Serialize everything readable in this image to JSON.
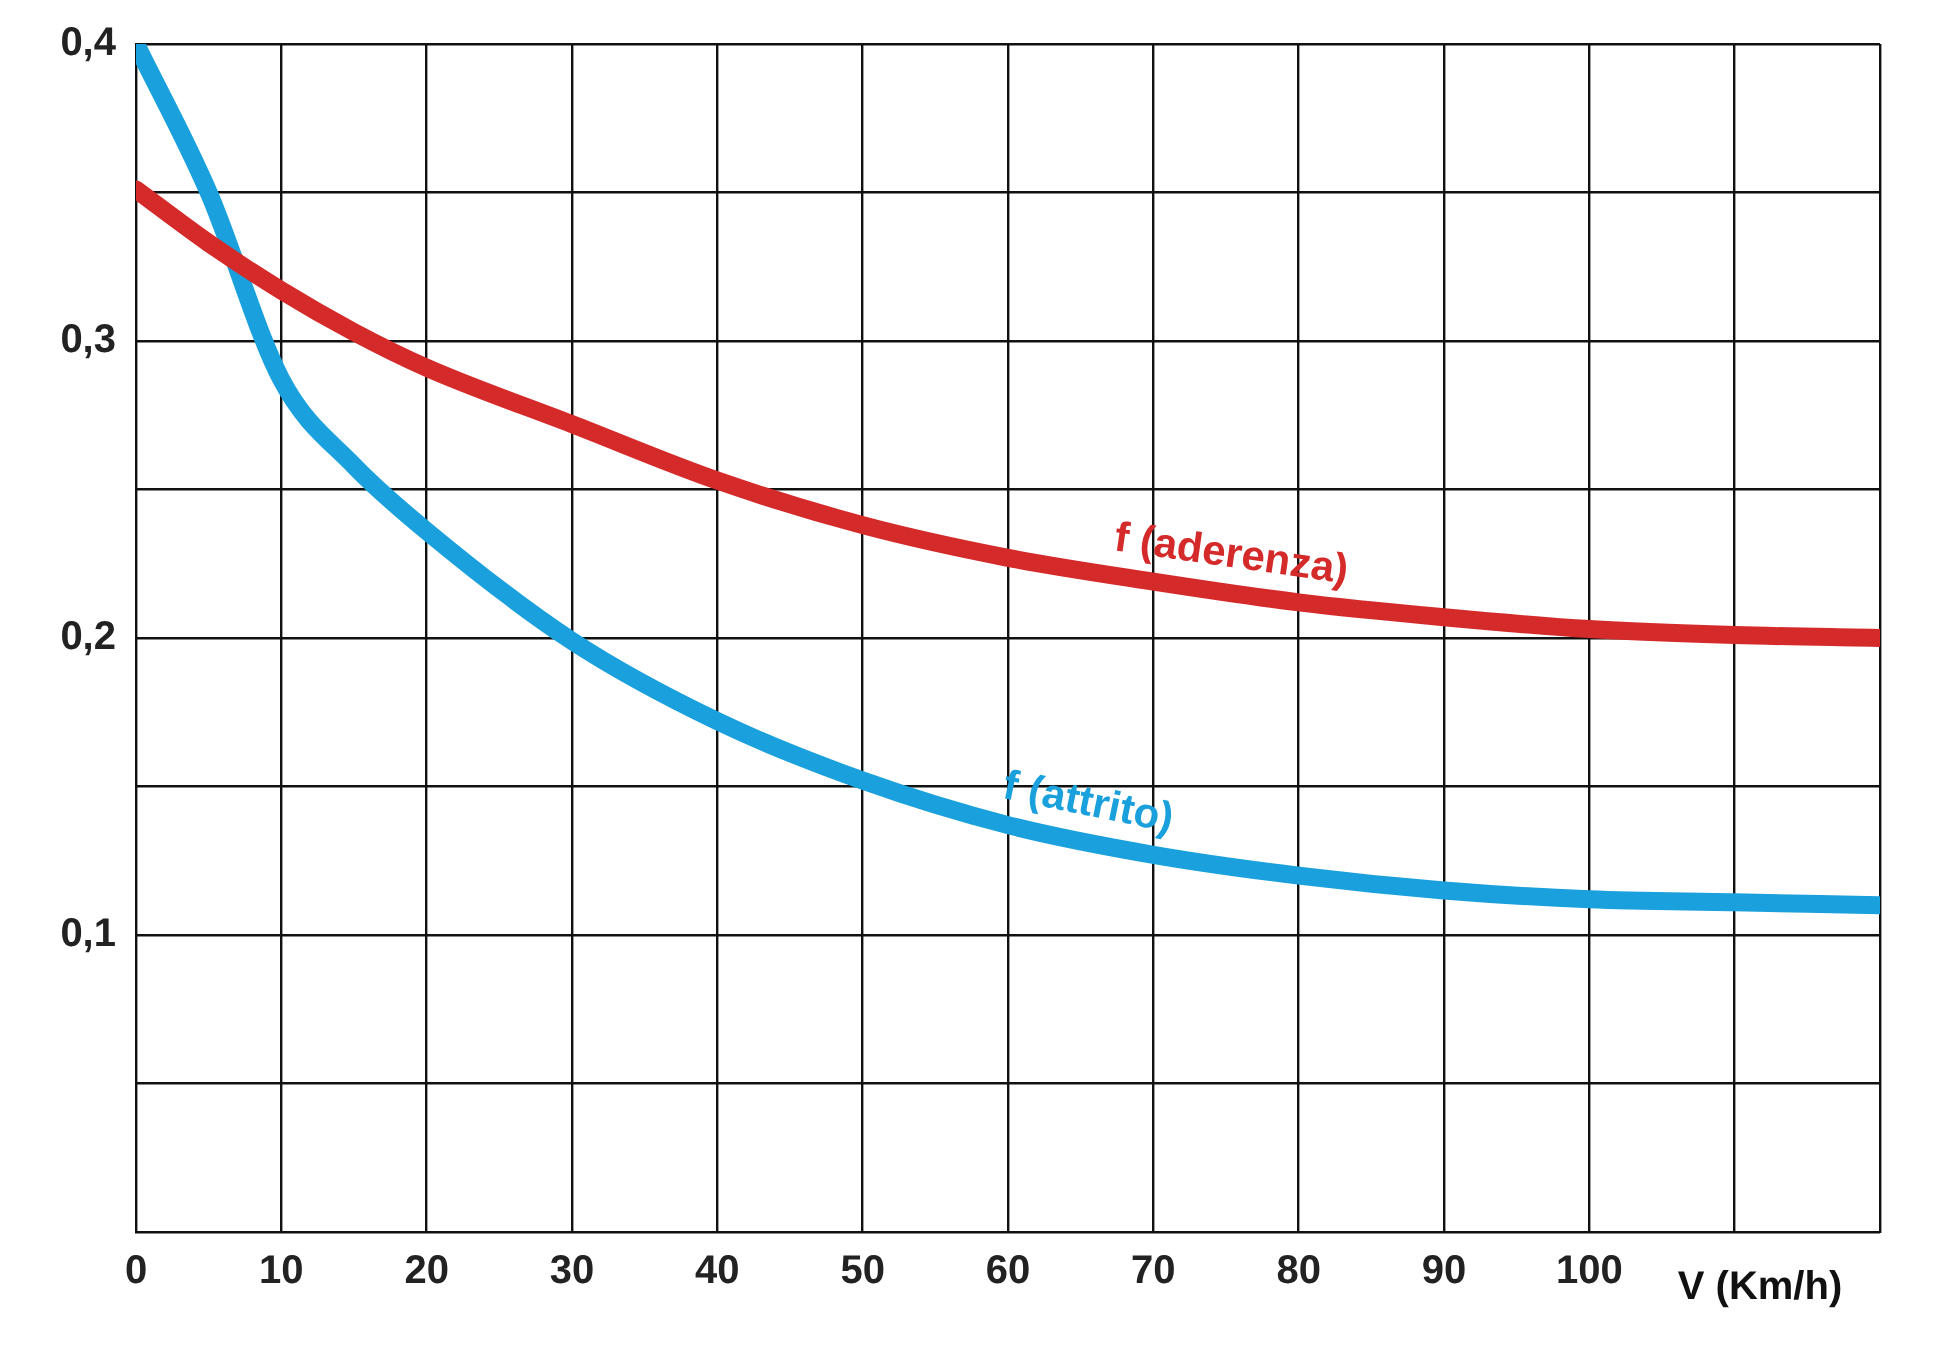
{
  "chart_data": {
    "type": "line",
    "xlabel": "V (Km/h)",
    "xlim": [
      0,
      120
    ],
    "xticks": [
      0,
      10,
      20,
      30,
      40,
      50,
      60,
      70,
      80,
      90,
      100,
      {
        "value": 110,
        "label": null
      },
      {
        "value": 120,
        "label": null
      }
    ],
    "ylim": [
      0,
      0.4
    ],
    "yticks": [
      {
        "value": 0,
        "label": null
      },
      {
        "value": 0.05,
        "label": null
      },
      {
        "value": 0.1,
        "label": "0,1"
      },
      {
        "value": 0.15,
        "label": null
      },
      {
        "value": 0.2,
        "label": "0,2"
      },
      {
        "value": 0.25,
        "label": null
      },
      {
        "value": 0.3,
        "label": "0,3"
      },
      {
        "value": 0.35,
        "label": null
      },
      {
        "value": 0.4,
        "label": "0,4"
      }
    ],
    "x": [
      0,
      5,
      10,
      15,
      20,
      30,
      40,
      50,
      60,
      70,
      80,
      90,
      100,
      110,
      120
    ],
    "series": [
      {
        "name": "f (aderenza)",
        "color": "#d42a2a",
        "values": [
          0.351,
          0.333,
          0.317,
          0.303,
          0.291,
          0.272,
          0.253,
          0.238,
          0.227,
          0.219,
          0.212,
          0.207,
          0.203,
          0.201,
          0.2
        ]
      },
      {
        "name": "f (attrito)",
        "color": "#1aa0dc",
        "values": [
          0.4,
          0.35,
          0.287,
          0.258,
          0.236,
          0.199,
          0.172,
          0.152,
          0.137,
          0.127,
          0.12,
          0.115,
          0.112,
          0.111,
          0.11
        ]
      }
    ],
    "grid": true,
    "legend": false,
    "marker": "none",
    "line_style": "solid"
  }
}
